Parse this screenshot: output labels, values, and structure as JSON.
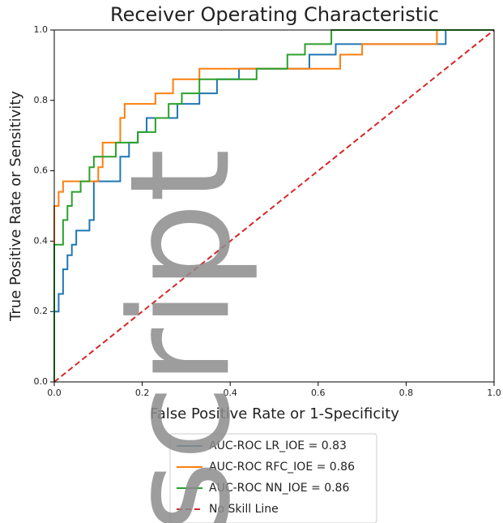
{
  "chart_data": {
    "type": "line",
    "title": "Receiver Operating Characteristic",
    "x_label": "False Positive Rate or 1-Specificity",
    "y_label": "True Positive Rate or Sensitivity",
    "xlim": [
      0,
      1
    ],
    "ylim": [
      0,
      1
    ],
    "xticks": [
      {
        "value": 0,
        "label": "0.0"
      },
      0.2,
      0.4,
      0.6,
      0.8,
      {
        "value": 1,
        "label": "1.0"
      }
    ],
    "yticks": [
      {
        "value": 0,
        "label": "0.0"
      },
      0.2,
      0.4,
      0.6,
      0.8,
      {
        "value": 1,
        "label": "1.0"
      }
    ],
    "legend": "lower center",
    "watermark": "script",
    "series": [
      {
        "name": "AUC-ROC LR_IOE = 0.83",
        "color": "#1f77b4",
        "linestyle": "solid",
        "x": [
          0,
          0,
          0.01,
          0.01,
          0.02,
          0.02,
          0.03,
          0.03,
          0.04,
          0.04,
          0.05,
          0.05,
          0.08,
          0.08,
          0.09,
          0.09,
          0.15,
          0.15,
          0.17,
          0.17,
          0.19,
          0.19,
          0.21,
          0.21,
          0.28,
          0.28,
          0.33,
          0.33,
          0.37,
          0.37,
          0.42,
          0.42,
          0.58,
          0.58,
          0.64,
          0.64,
          0.87,
          0.87,
          0.89,
          0.89,
          1
        ],
        "values": [
          0,
          0.2,
          0.2,
          0.25,
          0.25,
          0.32,
          0.32,
          0.36,
          0.36,
          0.39,
          0.39,
          0.43,
          0.43,
          0.46,
          0.46,
          0.57,
          0.57,
          0.64,
          0.64,
          0.68,
          0.68,
          0.71,
          0.71,
          0.75,
          0.75,
          0.79,
          0.79,
          0.82,
          0.82,
          0.86,
          0.86,
          0.89,
          0.89,
          0.93,
          0.93,
          0.96,
          0.96,
          0.96,
          0.96,
          1,
          1
        ]
      },
      {
        "name": "AUC-ROC RFC_IOE = 0.86",
        "color": "#ff7f0e",
        "linestyle": "solid",
        "x": [
          0,
          0,
          0.01,
          0.01,
          0.02,
          0.02,
          0.1,
          0.1,
          0.11,
          0.11,
          0.15,
          0.15,
          0.16,
          0.16,
          0.23,
          0.23,
          0.27,
          0.27,
          0.33,
          0.33,
          0.65,
          0.65,
          0.7,
          0.7,
          0.87,
          0.87,
          1
        ],
        "values": [
          0,
          0.5,
          0.5,
          0.54,
          0.54,
          0.57,
          0.57,
          0.61,
          0.61,
          0.68,
          0.68,
          0.75,
          0.75,
          0.79,
          0.79,
          0.82,
          0.82,
          0.86,
          0.86,
          0.89,
          0.89,
          0.93,
          0.93,
          0.96,
          0.96,
          1,
          1
        ]
      },
      {
        "name": "AUC-ROC NN_IOE = 0.86",
        "color": "#2ca02c",
        "linestyle": "solid",
        "x": [
          0,
          0,
          0.02,
          0.02,
          0.03,
          0.03,
          0.04,
          0.04,
          0.06,
          0.06,
          0.08,
          0.08,
          0.09,
          0.09,
          0.14,
          0.14,
          0.19,
          0.19,
          0.23,
          0.23,
          0.26,
          0.26,
          0.29,
          0.29,
          0.33,
          0.33,
          0.46,
          0.46,
          0.53,
          0.53,
          0.57,
          0.57,
          0.63,
          0.63,
          1
        ],
        "values": [
          0,
          0.39,
          0.39,
          0.46,
          0.46,
          0.5,
          0.5,
          0.54,
          0.54,
          0.57,
          0.57,
          0.61,
          0.61,
          0.64,
          0.64,
          0.68,
          0.68,
          0.71,
          0.71,
          0.75,
          0.75,
          0.79,
          0.79,
          0.82,
          0.82,
          0.86,
          0.86,
          0.89,
          0.89,
          0.93,
          0.93,
          0.96,
          0.96,
          1,
          1
        ]
      },
      {
        "name": "No Skill Line",
        "color": "#d62728",
        "linestyle": "dashed",
        "x": [
          0,
          1
        ],
        "values": [
          0,
          1
        ]
      }
    ]
  }
}
